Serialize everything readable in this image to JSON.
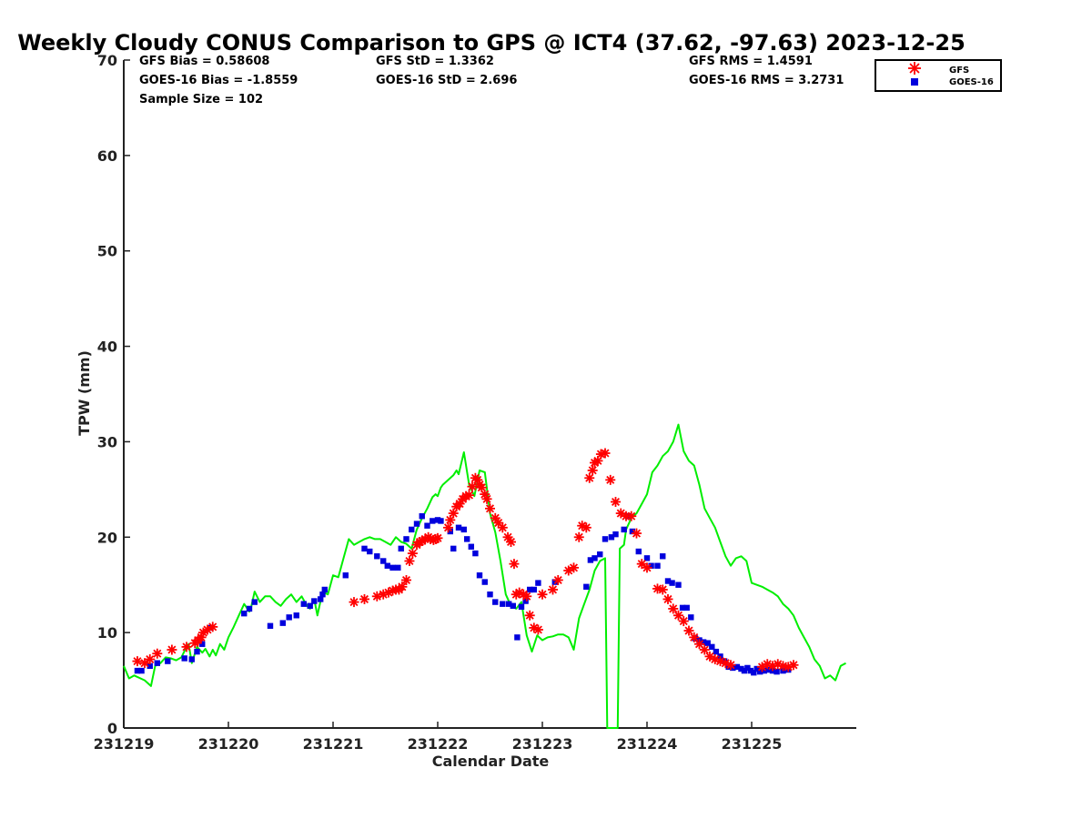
{
  "chart_data": {
    "type": "line",
    "title": "Weekly Cloudy CONUS Comparison to GPS @ ICT4 (37.62, -97.63) 2023-12-25",
    "xlabel": "Calendar Date",
    "ylabel": "TPW (mm)",
    "ylim": [
      0,
      70
    ],
    "xlim": [
      "231219",
      "231226"
    ],
    "x_unit": "calendar day (yymmdd); fractional values = time of day",
    "yticks": [
      0,
      10,
      20,
      30,
      40,
      50,
      60,
      70
    ],
    "xticks": [
      "231219",
      "231220",
      "231221",
      "231222",
      "231223",
      "231224",
      "231225"
    ],
    "grid": false,
    "legend_position": "top-right (outside plot)",
    "stats": {
      "gfs_bias": "GFS Bias = 0.58608",
      "goes_bias": "GOES-16 Bias = -1.8559",
      "sample_size": "Sample Size = 102",
      "gfs_std": "GFS StD = 1.3362",
      "goes_std": "GOES-16 StD = 2.696",
      "gfs_rms": "GFS RMS = 1.4591",
      "goes_rms": "GOES-16 RMS = 3.2731"
    },
    "legend": [
      {
        "name": "GFS",
        "marker": "asterisk",
        "color": "#ff0000"
      },
      {
        "name": "GOES-16",
        "marker": "square",
        "color": "#0000dd"
      }
    ],
    "series": [
      {
        "name": "GPS",
        "style": "line",
        "color": "#00ee00",
        "x": [
          0.0,
          0.05,
          0.1,
          0.2,
          0.26,
          0.3,
          0.35,
          0.4,
          0.45,
          0.5,
          0.55,
          0.6,
          0.62,
          0.65,
          0.7,
          0.75,
          0.78,
          0.82,
          0.85,
          0.88,
          0.92,
          0.96,
          1.0,
          1.05,
          1.1,
          1.15,
          1.2,
          1.22,
          1.25,
          1.3,
          1.35,
          1.4,
          1.45,
          1.5,
          1.55,
          1.6,
          1.65,
          1.7,
          1.75,
          1.78,
          1.82,
          1.85,
          1.9,
          1.95,
          2.0,
          2.05,
          2.1,
          2.15,
          2.2,
          2.25,
          2.3,
          2.35,
          2.4,
          2.45,
          2.5,
          2.55,
          2.6,
          2.65,
          2.7,
          2.75,
          2.8,
          2.85,
          2.9,
          2.95,
          2.98,
          3.0,
          3.03,
          3.05,
          3.1,
          3.15,
          3.18,
          3.2,
          3.25,
          3.3,
          3.35,
          3.4,
          3.45,
          3.5,
          3.55,
          3.6,
          3.65,
          3.7,
          3.75,
          3.8,
          3.85,
          3.9,
          3.95,
          4.0,
          4.05,
          4.1,
          4.15,
          4.2,
          4.25,
          4.3,
          4.35,
          4.4,
          4.45,
          4.5,
          4.55,
          4.6,
          4.62,
          4.64,
          4.67,
          4.7,
          4.72,
          4.74,
          4.78,
          4.8,
          4.85,
          4.9,
          4.95,
          5.0,
          5.05,
          5.1,
          5.15,
          5.2,
          5.25,
          5.3,
          5.35,
          5.4,
          5.45,
          5.5,
          5.55,
          5.6,
          5.65,
          5.7,
          5.75,
          5.8,
          5.85,
          5.9,
          5.95,
          6.0,
          6.05,
          6.1,
          6.15,
          6.2,
          6.25,
          6.3,
          6.35,
          6.4,
          6.45,
          6.5,
          6.55,
          6.6,
          6.65,
          6.7,
          6.75,
          6.8,
          6.85,
          6.9
        ],
        "y": [
          6.5,
          5.2,
          5.5,
          5.0,
          4.4,
          6.5,
          6.8,
          7.4,
          7.3,
          7.1,
          7.4,
          8.5,
          8.8,
          6.8,
          8.5,
          7.9,
          8.3,
          7.5,
          8.2,
          7.6,
          8.8,
          8.2,
          9.5,
          10.6,
          11.8,
          13.0,
          12.2,
          12.8,
          14.3,
          13.2,
          13.8,
          13.8,
          13.2,
          12.8,
          13.5,
          14.0,
          13.2,
          13.8,
          12.8,
          12.5,
          13.5,
          11.8,
          14.3,
          14.0,
          16.0,
          15.8,
          17.8,
          19.8,
          19.2,
          19.5,
          19.8,
          20.0,
          19.8,
          19.8,
          19.5,
          19.2,
          20.0,
          19.5,
          19.3,
          18.8,
          20.8,
          22.0,
          23.0,
          24.2,
          24.5,
          24.3,
          25.2,
          25.5,
          26.0,
          26.5,
          27.0,
          26.6,
          28.9,
          25.5,
          24.3,
          27.0,
          26.8,
          22.5,
          20.5,
          17.5,
          14.0,
          12.8,
          12.5,
          13.2,
          9.7,
          8.0,
          9.7,
          9.2,
          9.5,
          9.6,
          9.8,
          9.8,
          9.5,
          8.2,
          11.5,
          13.0,
          14.5,
          16.5,
          17.5,
          17.8,
          0.0,
          0.0,
          0.0,
          0.0,
          0.0,
          18.8,
          19.2,
          20.8,
          22.0,
          22.5,
          23.5,
          24.5,
          26.8,
          27.5,
          28.5,
          29.0,
          30.0,
          31.8,
          29.0,
          28.0,
          27.5,
          25.5,
          23.0,
          22.0,
          21.0,
          19.5,
          18.0,
          17.0,
          17.8,
          18.0,
          17.5,
          15.2,
          15.0,
          14.8,
          14.5,
          14.2,
          13.8,
          13.0,
          12.5,
          11.8,
          10.5,
          9.5,
          8.5,
          7.2,
          6.5,
          5.2,
          5.5,
          5.0,
          6.5,
          6.8
        ]
      },
      {
        "name": "GFS",
        "style": "asterisk",
        "color": "#ff0000",
        "x": [
          0.13,
          0.2,
          0.25,
          0.32,
          0.46,
          0.6,
          0.68,
          0.71,
          0.74,
          0.76,
          0.8,
          0.85,
          2.2,
          2.3,
          2.42,
          2.48,
          2.53,
          2.57,
          2.6,
          2.63,
          2.66,
          2.7,
          2.73,
          2.76,
          2.8,
          2.83,
          2.85,
          2.88,
          2.91,
          2.93,
          2.96,
          2.98,
          3.0,
          3.1,
          3.12,
          3.15,
          3.18,
          3.21,
          3.24,
          3.27,
          3.3,
          3.33,
          3.36,
          3.38,
          3.4,
          3.42,
          3.45,
          3.47,
          3.5,
          3.55,
          3.58,
          3.62,
          3.67,
          3.7,
          3.73,
          3.75,
          3.78,
          3.82,
          3.85,
          3.88,
          3.92,
          3.96,
          4.0,
          4.1,
          4.15,
          4.25,
          4.3,
          4.35,
          4.38,
          4.42,
          4.45,
          4.48,
          4.5,
          4.53,
          4.56,
          4.6,
          4.65,
          4.7,
          4.75,
          4.8,
          4.85,
          4.9,
          4.95,
          5.0,
          5.1,
          5.15,
          5.2,
          5.25,
          5.3,
          5.35,
          5.4,
          5.45,
          5.5,
          5.55,
          5.6,
          5.65,
          5.7,
          5.75,
          5.8,
          6.1,
          6.15,
          6.2,
          6.25,
          6.3,
          6.35,
          6.4
        ],
        "y": [
          7.0,
          6.8,
          7.2,
          7.8,
          8.2,
          8.5,
          8.9,
          9.2,
          9.5,
          10.0,
          10.3,
          10.6,
          13.2,
          13.5,
          13.8,
          14.0,
          14.2,
          14.4,
          14.5,
          14.5,
          14.8,
          15.5,
          17.5,
          18.3,
          19.2,
          19.5,
          19.6,
          19.8,
          20.0,
          19.8,
          19.7,
          19.8,
          19.9,
          21.0,
          21.8,
          22.5,
          23.2,
          23.5,
          24.0,
          24.3,
          24.4,
          25.3,
          26.2,
          26.0,
          25.5,
          25.2,
          24.5,
          24.0,
          23.0,
          22.0,
          21.5,
          21.0,
          20.0,
          19.5,
          17.2,
          14.0,
          14.2,
          14.0,
          13.8,
          11.8,
          10.5,
          10.3,
          14.0,
          14.5,
          15.5,
          16.5,
          16.8,
          20.0,
          21.2,
          21.0,
          26.2,
          27.0,
          27.8,
          28.0,
          28.7,
          28.8,
          26.0,
          23.7,
          22.5,
          22.2,
          22.2,
          20.4,
          17.2,
          16.8,
          14.6,
          14.5,
          13.5,
          12.5,
          11.8,
          11.2,
          10.2,
          9.5,
          8.8,
          8.2,
          7.5,
          7.2,
          7.0,
          6.8,
          6.6,
          6.4,
          6.7,
          6.5,
          6.7,
          6.5,
          6.4,
          6.6
        ]
      },
      {
        "name": "GOES-16",
        "style": "square",
        "color": "#0000dd",
        "x": [
          0.13,
          0.17,
          0.25,
          0.32,
          0.42,
          0.58,
          0.65,
          0.7,
          0.75,
          0.83,
          1.15,
          1.2,
          1.25,
          1.4,
          1.52,
          1.58,
          1.65,
          1.72,
          1.78,
          1.82,
          1.88,
          1.9,
          1.92,
          2.12,
          2.3,
          2.35,
          2.42,
          2.48,
          2.52,
          2.57,
          2.62,
          2.65,
          2.7,
          2.75,
          2.8,
          2.85,
          2.9,
          2.95,
          3.0,
          3.03,
          3.12,
          3.15,
          3.2,
          3.25,
          3.28,
          3.32,
          3.36,
          3.4,
          3.45,
          3.5,
          3.55,
          3.62,
          3.68,
          3.72,
          3.76,
          3.8,
          3.84,
          3.88,
          3.92,
          3.96,
          4.12,
          4.42,
          4.46,
          4.5,
          4.55,
          4.6,
          4.66,
          4.7,
          4.78,
          4.82,
          4.86,
          4.92,
          5.0,
          5.04,
          5.1,
          5.15,
          5.2,
          5.24,
          5.3,
          5.34,
          5.38,
          5.42,
          5.46,
          5.5,
          5.54,
          5.58,
          5.62,
          5.66,
          5.7,
          5.74,
          5.78,
          5.82,
          5.86,
          5.9,
          5.93,
          5.96,
          5.99,
          6.02,
          6.05,
          6.08,
          6.12,
          6.16,
          6.2,
          6.24,
          6.3,
          6.35
        ],
        "y": [
          6.0,
          6.0,
          6.5,
          6.8,
          7.0,
          7.3,
          7.2,
          8.0,
          8.8,
          10.5,
          12.0,
          12.5,
          13.2,
          10.7,
          11.0,
          11.6,
          11.8,
          13.0,
          12.8,
          13.3,
          13.5,
          14.0,
          14.5,
          16.0,
          18.8,
          18.5,
          18.0,
          17.5,
          17.0,
          16.8,
          16.8,
          18.8,
          19.8,
          20.8,
          21.4,
          22.2,
          21.2,
          21.7,
          21.8,
          21.7,
          20.6,
          18.8,
          21.0,
          20.8,
          19.8,
          19.0,
          18.3,
          16.0,
          15.3,
          14.0,
          13.2,
          13.0,
          13.0,
          12.8,
          9.5,
          12.7,
          13.3,
          14.5,
          14.5,
          15.2,
          15.3,
          14.8,
          17.6,
          17.8,
          18.2,
          19.8,
          20.0,
          20.3,
          20.8,
          22.2,
          20.6,
          18.5,
          17.8,
          17.0,
          17.0,
          18.0,
          15.4,
          15.2,
          15.0,
          12.6,
          12.6,
          11.6,
          9.4,
          9.2,
          9.0,
          8.9,
          8.5,
          8.0,
          7.5,
          7.0,
          6.4,
          6.3,
          6.4,
          6.2,
          6.0,
          6.3,
          6.0,
          5.8,
          6.2,
          5.9,
          6.0,
          6.1,
          6.0,
          5.9,
          6.0,
          6.1
        ]
      }
    ]
  }
}
